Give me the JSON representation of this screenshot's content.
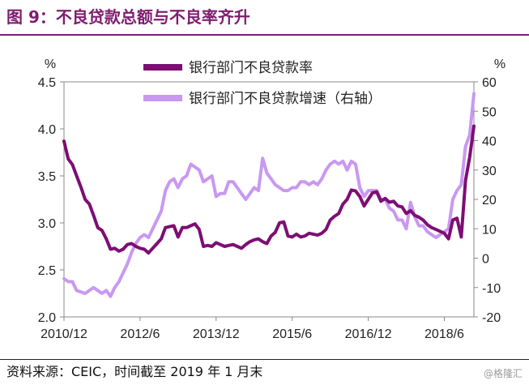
{
  "figure": {
    "title": "图 9：不良贷款总额与不良率齐升",
    "source": "资料来源：CEIC，时间截至 2019 年 1 月末",
    "watermark": "@格隆汇"
  },
  "colors": {
    "title": "#7f1d6f",
    "npl_ratio": "#7d0e73",
    "npl_growth": "#c998f2"
  },
  "chart_data": {
    "type": "line",
    "y_left": {
      "label": "%",
      "range": [
        2.0,
        4.5
      ],
      "ticks": [
        "2.0",
        "2.5",
        "3.0",
        "3.5",
        "4.0",
        "4.5"
      ]
    },
    "y_right": {
      "label": "%",
      "range": [
        -20,
        60
      ],
      "ticks": [
        "-20",
        "-10",
        "0",
        "10",
        "20",
        "30",
        "40",
        "50",
        "60"
      ]
    },
    "x_ticks": [
      "2010/12",
      "2012/6",
      "2013/12",
      "2015/6",
      "2016/12",
      "2018/6"
    ],
    "legend_position": "top",
    "series": [
      {
        "name": "银行部门不良贷款率",
        "axis": "left",
        "points": [
          [
            "2010-12",
            3.87
          ],
          [
            "2011-01",
            3.68
          ],
          [
            "2011-02",
            3.62
          ],
          [
            "2011-03",
            3.5
          ],
          [
            "2011-04",
            3.38
          ],
          [
            "2011-05",
            3.25
          ],
          [
            "2011-06",
            3.2
          ],
          [
            "2011-07",
            3.08
          ],
          [
            "2011-08",
            2.95
          ],
          [
            "2011-09",
            2.92
          ],
          [
            "2011-10",
            2.83
          ],
          [
            "2011-11",
            2.72
          ],
          [
            "2011-12",
            2.73
          ],
          [
            "2012-01",
            2.7
          ],
          [
            "2012-02",
            2.72
          ],
          [
            "2012-03",
            2.77
          ],
          [
            "2012-04",
            2.78
          ],
          [
            "2012-05",
            2.75
          ],
          [
            "2012-06",
            2.73
          ],
          [
            "2012-07",
            2.72
          ],
          [
            "2012-08",
            2.68
          ],
          [
            "2012-09",
            2.73
          ],
          [
            "2012-10",
            2.78
          ],
          [
            "2012-11",
            2.83
          ],
          [
            "2012-12",
            2.95
          ],
          [
            "2013-01",
            2.96
          ],
          [
            "2013-02",
            2.97
          ],
          [
            "2013-03",
            2.85
          ],
          [
            "2013-04",
            2.95
          ],
          [
            "2013-05",
            2.95
          ],
          [
            "2013-06",
            2.97
          ],
          [
            "2013-07",
            2.99
          ],
          [
            "2013-08",
            2.93
          ],
          [
            "2013-09",
            2.75
          ],
          [
            "2013-10",
            2.76
          ],
          [
            "2013-11",
            2.75
          ],
          [
            "2013-12",
            2.79
          ],
          [
            "2014-01",
            2.77
          ],
          [
            "2014-02",
            2.75
          ],
          [
            "2014-03",
            2.76
          ],
          [
            "2014-04",
            2.77
          ],
          [
            "2014-05",
            2.75
          ],
          [
            "2014-06",
            2.73
          ],
          [
            "2014-07",
            2.77
          ],
          [
            "2014-08",
            2.8
          ],
          [
            "2014-09",
            2.82
          ],
          [
            "2014-10",
            2.83
          ],
          [
            "2014-11",
            2.8
          ],
          [
            "2014-12",
            2.78
          ],
          [
            "2015-01",
            2.86
          ],
          [
            "2015-02",
            2.9
          ],
          [
            "2015-03",
            3.0
          ],
          [
            "2015-04",
            3.01
          ],
          [
            "2015-05",
            2.86
          ],
          [
            "2015-06",
            2.85
          ],
          [
            "2015-07",
            2.88
          ],
          [
            "2015-08",
            2.85
          ],
          [
            "2015-09",
            2.86
          ],
          [
            "2015-10",
            2.89
          ],
          [
            "2015-11",
            2.88
          ],
          [
            "2015-12",
            2.87
          ],
          [
            "2016-01",
            2.89
          ],
          [
            "2016-02",
            2.93
          ],
          [
            "2016-03",
            3.03
          ],
          [
            "2016-04",
            3.07
          ],
          [
            "2016-05",
            3.1
          ],
          [
            "2016-06",
            3.2
          ],
          [
            "2016-07",
            3.25
          ],
          [
            "2016-08",
            3.35
          ],
          [
            "2016-09",
            3.34
          ],
          [
            "2016-10",
            3.28
          ],
          [
            "2016-11",
            3.18
          ],
          [
            "2016-12",
            3.25
          ],
          [
            "2017-01",
            3.32
          ],
          [
            "2017-02",
            3.33
          ],
          [
            "2017-03",
            3.23
          ],
          [
            "2017-04",
            3.26
          ],
          [
            "2017-05",
            3.22
          ],
          [
            "2017-06",
            3.23
          ],
          [
            "2017-07",
            3.18
          ],
          [
            "2017-08",
            3.17
          ],
          [
            "2017-09",
            3.1
          ],
          [
            "2017-10",
            3.13
          ],
          [
            "2017-11",
            3.08
          ],
          [
            "2017-12",
            3.06
          ],
          [
            "2018-01",
            3.03
          ],
          [
            "2018-02",
            2.98
          ],
          [
            "2018-03",
            2.95
          ],
          [
            "2018-04",
            2.93
          ],
          [
            "2018-05",
            2.91
          ],
          [
            "2018-06",
            2.89
          ],
          [
            "2018-07",
            2.83
          ],
          [
            "2018-08",
            3.03
          ],
          [
            "2018-09",
            3.05
          ],
          [
            "2018-10",
            2.85
          ],
          [
            "2018-11",
            3.45
          ],
          [
            "2018-12",
            3.7
          ],
          [
            "2019-01",
            4.03
          ]
        ]
      },
      {
        "name": "银行部门不良贷款增速（右轴）",
        "axis": "right",
        "points": [
          [
            "2010-12",
            -7
          ],
          [
            "2011-01",
            -8
          ],
          [
            "2011-02",
            -8
          ],
          [
            "2011-03",
            -11
          ],
          [
            "2011-04",
            -11.5
          ],
          [
            "2011-05",
            -12
          ],
          [
            "2011-06",
            -11
          ],
          [
            "2011-07",
            -10
          ],
          [
            "2011-08",
            -11
          ],
          [
            "2011-09",
            -12
          ],
          [
            "2011-10",
            -11
          ],
          [
            "2011-11",
            -13
          ],
          [
            "2011-12",
            -10
          ],
          [
            "2012-01",
            -8
          ],
          [
            "2012-02",
            -5
          ],
          [
            "2012-03",
            -2
          ],
          [
            "2012-04",
            2
          ],
          [
            "2012-05",
            5
          ],
          [
            "2012-06",
            7
          ],
          [
            "2012-07",
            8
          ],
          [
            "2012-08",
            7
          ],
          [
            "2012-09",
            10
          ],
          [
            "2012-10",
            13
          ],
          [
            "2012-11",
            16
          ],
          [
            "2012-12",
            23
          ],
          [
            "2013-01",
            26
          ],
          [
            "2013-02",
            27
          ],
          [
            "2013-03",
            24
          ],
          [
            "2013-04",
            27
          ],
          [
            "2013-05",
            28
          ],
          [
            "2013-06",
            32
          ],
          [
            "2013-07",
            31
          ],
          [
            "2013-08",
            30
          ],
          [
            "2013-09",
            26
          ],
          [
            "2013-10",
            27
          ],
          [
            "2013-11",
            28
          ],
          [
            "2013-12",
            21
          ],
          [
            "2014-01",
            22
          ],
          [
            "2014-02",
            22
          ],
          [
            "2014-03",
            26
          ],
          [
            "2014-04",
            26
          ],
          [
            "2014-05",
            24
          ],
          [
            "2014-06",
            22
          ],
          [
            "2014-07",
            20
          ],
          [
            "2014-08",
            22
          ],
          [
            "2014-09",
            24
          ],
          [
            "2014-10",
            23
          ],
          [
            "2014-11",
            34
          ],
          [
            "2014-12",
            29
          ],
          [
            "2015-01",
            27
          ],
          [
            "2015-02",
            25
          ],
          [
            "2015-03",
            24
          ],
          [
            "2015-04",
            23
          ],
          [
            "2015-05",
            23
          ],
          [
            "2015-06",
            24
          ],
          [
            "2015-07",
            24
          ],
          [
            "2015-08",
            26
          ],
          [
            "2015-09",
            26
          ],
          [
            "2015-10",
            25
          ],
          [
            "2015-11",
            26
          ],
          [
            "2015-12",
            25
          ],
          [
            "2016-01",
            27
          ],
          [
            "2016-02",
            30
          ],
          [
            "2016-03",
            32
          ],
          [
            "2016-04",
            33
          ],
          [
            "2016-05",
            32
          ],
          [
            "2016-06",
            33
          ],
          [
            "2016-07",
            30
          ],
          [
            "2016-08",
            33
          ],
          [
            "2016-09",
            32
          ],
          [
            "2016-10",
            24
          ],
          [
            "2016-11",
            21
          ],
          [
            "2016-12",
            23
          ],
          [
            "2017-01",
            23
          ],
          [
            "2017-02",
            23
          ],
          [
            "2017-03",
            20
          ],
          [
            "2017-04",
            20
          ],
          [
            "2017-05",
            17
          ],
          [
            "2017-06",
            16
          ],
          [
            "2017-07",
            13
          ],
          [
            "2017-08",
            13
          ],
          [
            "2017-09",
            10
          ],
          [
            "2017-10",
            19
          ],
          [
            "2017-11",
            14
          ],
          [
            "2017-12",
            11
          ],
          [
            "2018-01",
            11
          ],
          [
            "2018-02",
            9
          ],
          [
            "2018-03",
            8
          ],
          [
            "2018-04",
            7
          ],
          [
            "2018-05",
            8
          ],
          [
            "2018-06",
            9
          ],
          [
            "2018-07",
            10
          ],
          [
            "2018-08",
            20
          ],
          [
            "2018-09",
            23
          ],
          [
            "2018-10",
            25
          ],
          [
            "2018-11",
            38
          ],
          [
            "2018-12",
            42
          ],
          [
            "2019-01",
            56
          ]
        ]
      }
    ]
  }
}
